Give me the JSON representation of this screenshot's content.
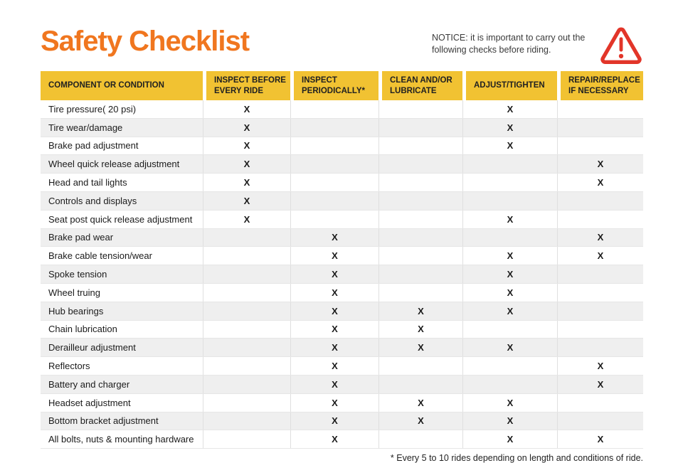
{
  "page": {
    "title": "Safety Checklist",
    "notice": "NOTICE: it is important to carry out the following checks before riding.",
    "footnote": "* Every 5 to 10 rides depending on length and conditions of ride."
  },
  "colors": {
    "title_orange": "#F0761F",
    "header_yellow": "#F1C232",
    "row_alt_gray": "#EFEFEF",
    "warning_red": "#E23529"
  },
  "icons": {
    "warning": "warning-triangle-icon"
  },
  "table": {
    "columns": [
      "COMPONENT OR CONDITION",
      "INSPECT BEFORE EVERY RIDE",
      "INSPECT PERIODICALLY*",
      "CLEAN AND/OR LUBRICATE",
      "ADJUST/TIGHTEN",
      "REPAIR/REPLACE IF NECESSARY"
    ],
    "check_mark": "X",
    "rows": [
      {
        "component": "Tire pressure( 20 psi)",
        "checks": [
          1,
          0,
          0,
          1,
          0
        ]
      },
      {
        "component": "Tire wear/damage",
        "checks": [
          1,
          0,
          0,
          1,
          0
        ]
      },
      {
        "component": "Brake pad adjustment",
        "checks": [
          1,
          0,
          0,
          1,
          0
        ]
      },
      {
        "component": "Wheel quick release adjustment",
        "checks": [
          1,
          0,
          0,
          0,
          1
        ]
      },
      {
        "component": "Head and tail lights",
        "checks": [
          1,
          0,
          0,
          0,
          1
        ]
      },
      {
        "component": "Controls and displays",
        "checks": [
          1,
          0,
          0,
          0,
          0
        ]
      },
      {
        "component": "Seat post quick release adjustment",
        "checks": [
          1,
          0,
          0,
          1,
          0
        ]
      },
      {
        "component": "Brake pad wear",
        "checks": [
          0,
          1,
          0,
          0,
          1
        ]
      },
      {
        "component": "Brake cable tension/wear",
        "checks": [
          0,
          1,
          0,
          1,
          1
        ]
      },
      {
        "component": "Spoke tension",
        "checks": [
          0,
          1,
          0,
          1,
          0
        ]
      },
      {
        "component": "Wheel truing",
        "checks": [
          0,
          1,
          0,
          1,
          0
        ]
      },
      {
        "component": "Hub bearings",
        "checks": [
          0,
          1,
          1,
          1,
          0
        ]
      },
      {
        "component": "Chain lubrication",
        "checks": [
          0,
          1,
          1,
          0,
          0
        ]
      },
      {
        "component": "Derailleur adjustment",
        "checks": [
          0,
          1,
          1,
          1,
          0
        ]
      },
      {
        "component": "Reflectors",
        "checks": [
          0,
          1,
          0,
          0,
          1
        ]
      },
      {
        "component": "Battery and charger",
        "checks": [
          0,
          1,
          0,
          0,
          1
        ]
      },
      {
        "component": "Headset adjustment",
        "checks": [
          0,
          1,
          1,
          1,
          0
        ]
      },
      {
        "component": "Bottom bracket adjustment",
        "checks": [
          0,
          1,
          1,
          1,
          0
        ]
      },
      {
        "component": "All bolts, nuts & mounting hardware",
        "checks": [
          0,
          1,
          0,
          1,
          1
        ]
      }
    ]
  }
}
